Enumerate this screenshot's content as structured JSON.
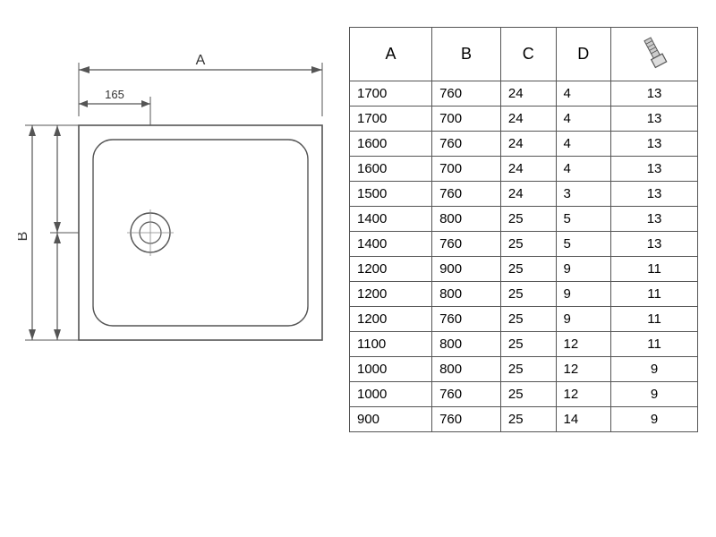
{
  "diagram": {
    "label_A": "A",
    "label_B": "B",
    "drain_offset": "165",
    "stroke": "#444444",
    "light_stroke": "#888888",
    "tray_fill": "#ffffff"
  },
  "table": {
    "columns": [
      "A",
      "B",
      "C",
      "D",
      ""
    ],
    "bolt_label": "bolt",
    "header_fontsize": 18,
    "cell_fontsize": 15,
    "border_color": "#555555",
    "rows": [
      [
        "1700",
        "760",
        "24",
        "4",
        "13"
      ],
      [
        "1700",
        "700",
        "24",
        "4",
        "13"
      ],
      [
        "1600",
        "760",
        "24",
        "4",
        "13"
      ],
      [
        "1600",
        "700",
        "24",
        "4",
        "13"
      ],
      [
        "1500",
        "760",
        "24",
        "3",
        "13"
      ],
      [
        "1400",
        "800",
        "25",
        "5",
        "13"
      ],
      [
        "1400",
        "760",
        "25",
        "5",
        "13"
      ],
      [
        "1200",
        "900",
        "25",
        "9",
        "11"
      ],
      [
        "1200",
        "800",
        "25",
        "9",
        "11"
      ],
      [
        "1200",
        "760",
        "25",
        "9",
        "11"
      ],
      [
        "1100",
        "800",
        "25",
        "12",
        "11"
      ],
      [
        "1000",
        "800",
        "25",
        "12",
        "9"
      ],
      [
        "1000",
        "760",
        "25",
        "12",
        "9"
      ],
      [
        "900",
        "760",
        "25",
        "14",
        "9"
      ]
    ]
  }
}
